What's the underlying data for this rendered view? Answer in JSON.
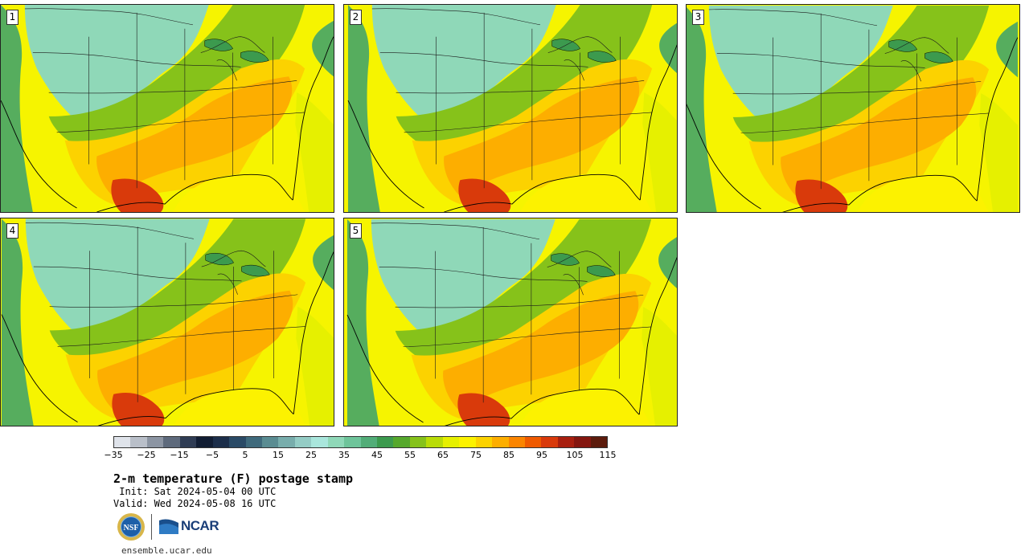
{
  "panels": [
    {
      "label": "1",
      "variant": 0
    },
    {
      "label": "2",
      "variant": 1
    },
    {
      "label": "3",
      "variant": 2
    },
    {
      "label": "4",
      "variant": 3
    },
    {
      "label": "5",
      "variant": 4
    }
  ],
  "colorbar": {
    "colors": [
      "#dfe3ea",
      "#b9bfc9",
      "#8c95a3",
      "#5e6a7c",
      "#2f3c54",
      "#111d33",
      "#1c2e4a",
      "#2a4a66",
      "#3f6a7c",
      "#5a8c92",
      "#78adac",
      "#94ccc5",
      "#a9e6dc",
      "#8fd8b8",
      "#6ec49a",
      "#52ad78",
      "#3c9a4e",
      "#56a82c",
      "#86c21a",
      "#b9dc07",
      "#e6f000",
      "#fcf200",
      "#fcd200",
      "#fdae00",
      "#fb8500",
      "#ef5a00",
      "#d93a0b",
      "#a81f0f",
      "#84160f",
      "#5c1b0c"
    ],
    "tick_labels": [
      "−35",
      "−25",
      "−15",
      "−5",
      "5",
      "15",
      "25",
      "35",
      "45",
      "55",
      "65",
      "75",
      "85",
      "95",
      "105",
      "115"
    ],
    "min": -40,
    "max": 120
  },
  "title": "2-m temperature (F) postage stamp",
  "init_line": " Init: Sat 2024-05-04 00 UTC",
  "valid_line": "Valid: Wed 2024-05-08 16 UTC",
  "logos": {
    "nsf": "NSF",
    "ncar": "NCAR"
  },
  "site": "ensemble.ucar.edu"
}
